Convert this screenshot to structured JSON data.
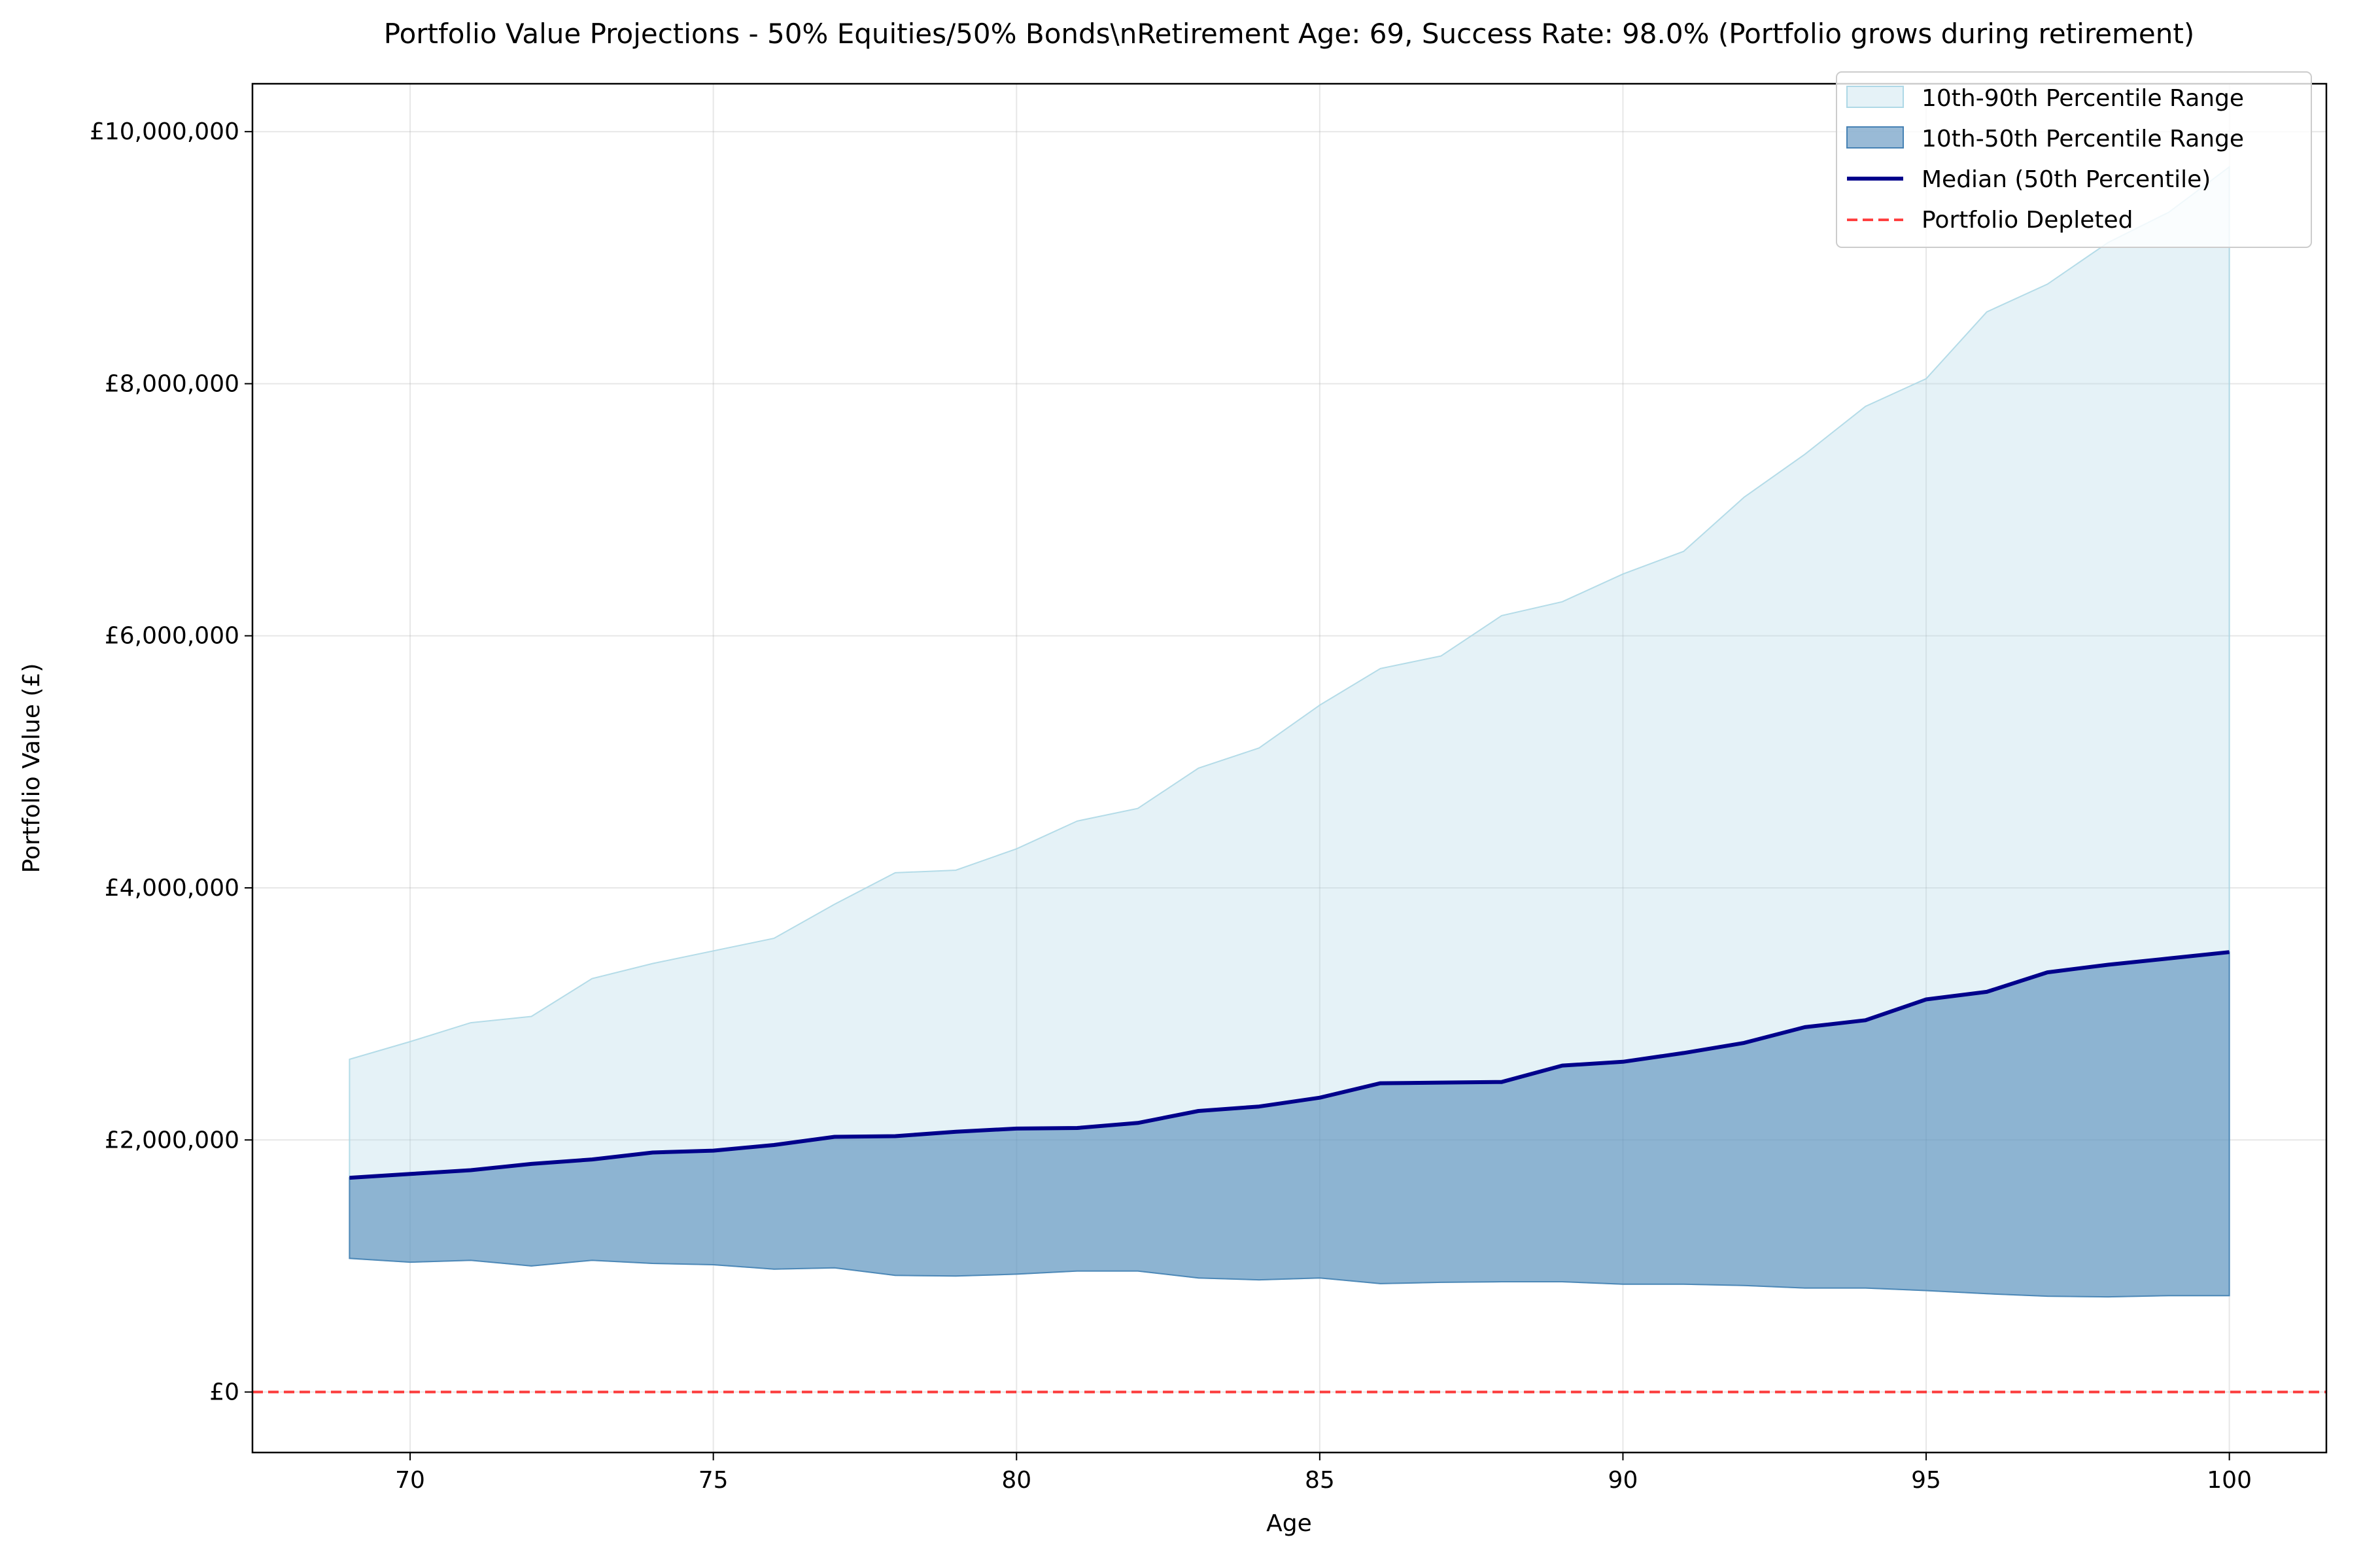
{
  "chart_data": {
    "type": "area",
    "title": "Portfolio Value Projections - 50% Equities/50% Bonds\\nRetirement Age: 69, Success Rate: 98.0% (Portfolio grows during retirement)",
    "xlabel": "Age",
    "ylabel": "Portfolio Value (£)",
    "xlim": [
      67.4,
      101.6
    ],
    "ylim": [
      -480000,
      10380000
    ],
    "xticks": [
      70,
      75,
      80,
      85,
      90,
      95,
      100
    ],
    "yticks": [
      0,
      2000000,
      4000000,
      6000000,
      8000000,
      10000000
    ],
    "ytick_labels": [
      "£0",
      "£2,000,000",
      "£4,000,000",
      "£6,000,000",
      "£8,000,000",
      "£10,000,000"
    ],
    "grid": true,
    "legend_position": "top-right",
    "x": [
      69,
      70,
      71,
      72,
      73,
      74,
      75,
      76,
      77,
      78,
      79,
      80,
      81,
      82,
      83,
      84,
      85,
      86,
      87,
      88,
      89,
      90,
      91,
      92,
      93,
      94,
      95,
      96,
      97,
      98,
      99,
      100
    ],
    "series": [
      {
        "name": "10th-90th Percentile Range",
        "kind": "band",
        "color": "#add8e6",
        "opacity": 0.32,
        "low": [
          1060000,
          1030000,
          1045000,
          1000000,
          1045000,
          1020000,
          1010000,
          975000,
          985000,
          925000,
          920000,
          935000,
          960000,
          960000,
          905000,
          890000,
          905000,
          860000,
          870000,
          875000,
          875000,
          855000,
          855000,
          845000,
          825000,
          825000,
          805000,
          780000,
          760000,
          755000,
          765000,
          765000
        ],
        "high": [
          2640000,
          2780000,
          2930000,
          2980000,
          3280000,
          3400000,
          3500000,
          3600000,
          3870000,
          4120000,
          4140000,
          4310000,
          4530000,
          4630000,
          4950000,
          5110000,
          5450000,
          5740000,
          5840000,
          6160000,
          6270000,
          6490000,
          6670000,
          7100000,
          7440000,
          7820000,
          8040000,
          8570000,
          8790000,
          9120000,
          9360000,
          9720000
        ]
      },
      {
        "name": "10th-50th Percentile Range",
        "kind": "band",
        "color": "#4682b4",
        "opacity": 0.55,
        "low": [
          1060000,
          1030000,
          1045000,
          1000000,
          1045000,
          1020000,
          1010000,
          975000,
          985000,
          925000,
          920000,
          935000,
          960000,
          960000,
          905000,
          890000,
          905000,
          860000,
          870000,
          875000,
          875000,
          855000,
          855000,
          845000,
          825000,
          825000,
          805000,
          780000,
          760000,
          755000,
          765000,
          765000
        ],
        "high": [
          1700000,
          1730000,
          1760000,
          1810000,
          1845000,
          1900000,
          1915000,
          1960000,
          2025000,
          2030000,
          2065000,
          2090000,
          2095000,
          2135000,
          2230000,
          2265000,
          2335000,
          2450000,
          2455000,
          2460000,
          2590000,
          2620000,
          2690000,
          2770000,
          2895000,
          2950000,
          3115000,
          3175000,
          3330000,
          3390000,
          3440000,
          3490000
        ]
      },
      {
        "name": "Median (50th Percentile)",
        "kind": "line",
        "color": "#00008b",
        "values": [
          1700000,
          1730000,
          1760000,
          1810000,
          1845000,
          1900000,
          1915000,
          1960000,
          2025000,
          2030000,
          2065000,
          2090000,
          2095000,
          2135000,
          2230000,
          2265000,
          2335000,
          2450000,
          2455000,
          2460000,
          2590000,
          2620000,
          2690000,
          2770000,
          2895000,
          2950000,
          3115000,
          3175000,
          3330000,
          3390000,
          3440000,
          3490000
        ]
      },
      {
        "name": "Portfolio Depleted",
        "kind": "hline",
        "color": "#ff0000",
        "y": 0
      }
    ]
  }
}
